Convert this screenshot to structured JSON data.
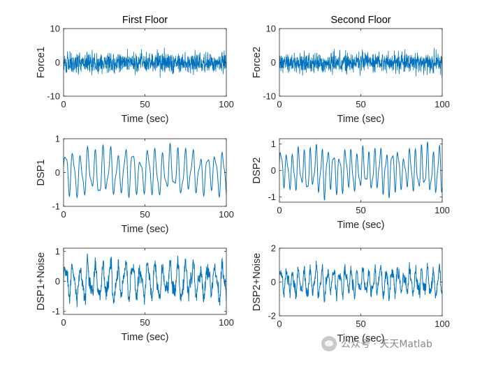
{
  "chart_data": [
    {
      "id": "f1",
      "type": "line",
      "title": "First Floor",
      "ylabel": "Force1",
      "xlabel": "Time (sec)",
      "xlim": [
        0,
        100
      ],
      "ylim": [
        -10,
        10
      ],
      "xticks": [
        0,
        50,
        100
      ],
      "yticks": [
        -10,
        0,
        10
      ],
      "xtick_labels": [
        "0",
        "50",
        "100"
      ],
      "ytick_labels": [
        "-10",
        "0",
        "10"
      ],
      "signal": "noise",
      "amplitude": 2.5,
      "seed": 7
    },
    {
      "id": "f2",
      "type": "line",
      "title": "Second Floor",
      "ylabel": "Force2",
      "xlabel": "Time (sec)",
      "xlim": [
        0,
        100
      ],
      "ylim": [
        -10,
        10
      ],
      "xticks": [
        0,
        50,
        100
      ],
      "yticks": [
        -10,
        0,
        10
      ],
      "xtick_labels": [
        "0",
        "50",
        "100"
      ],
      "ytick_labels": [
        "-10",
        "0",
        "10"
      ],
      "signal": "noise",
      "amplitude": 2.5,
      "seed": 19
    },
    {
      "id": "d1",
      "type": "line",
      "title": "",
      "ylabel": "DSP1",
      "xlabel": "Time (sec)",
      "xlim": [
        0,
        100
      ],
      "ylim": [
        -1,
        1
      ],
      "xticks": [
        0,
        50,
        100
      ],
      "yticks": [
        -1,
        0,
        1
      ],
      "xtick_labels": [
        "0",
        "50",
        "100"
      ],
      "ytick_labels": [
        "-1",
        "0",
        "1"
      ],
      "signal": "oscillation",
      "amplitude": 0.7,
      "period": 4.6,
      "seed": 3,
      "noise": 0
    },
    {
      "id": "d2",
      "type": "line",
      "title": "",
      "ylabel": "DSP2",
      "xlabel": "Time (sec)",
      "xlim": [
        0,
        100
      ],
      "ylim": [
        -1.2,
        1.2
      ],
      "xticks": [
        0,
        50,
        100
      ],
      "yticks": [
        -1,
        0,
        1
      ],
      "xtick_labels": [
        "0",
        "50",
        "100"
      ],
      "ytick_labels": [
        "-1",
        "0",
        "1"
      ],
      "signal": "oscillation",
      "amplitude": 0.85,
      "period": 3.6,
      "seed": 11,
      "noise": 0
    },
    {
      "id": "n1",
      "type": "line",
      "title": "",
      "ylabel": "DSP1+Noise",
      "xlabel": "Time (sec)",
      "xlim": [
        0,
        100
      ],
      "ylim": [
        -1.1,
        1.1
      ],
      "xticks": [
        0,
        50,
        100
      ],
      "yticks": [
        -1,
        0,
        1
      ],
      "xtick_labels": [
        "0",
        "50",
        "100"
      ],
      "ytick_labels": [
        "-1",
        "0",
        "1"
      ],
      "signal": "oscillation",
      "amplitude": 0.6,
      "period": 4.6,
      "seed": 3,
      "noise": 0.22
    },
    {
      "id": "n2",
      "type": "line",
      "title": "",
      "ylabel": "DSP2+Noise",
      "xlabel": "Time (sec)",
      "xlim": [
        0,
        100
      ],
      "ylim": [
        -2,
        2
      ],
      "xticks": [
        0,
        50,
        100
      ],
      "yticks": [
        -2,
        0,
        2
      ],
      "xtick_labels": [
        "0",
        "50",
        "100"
      ],
      "ytick_labels": [
        "-2",
        "0",
        "2"
      ],
      "signal": "oscillation",
      "amplitude": 0.8,
      "period": 3.6,
      "seed": 11,
      "noise": 0.3
    }
  ],
  "line_color": "#0072BD",
  "watermark": {
    "text": "公众号 · 天天Matlab"
  }
}
